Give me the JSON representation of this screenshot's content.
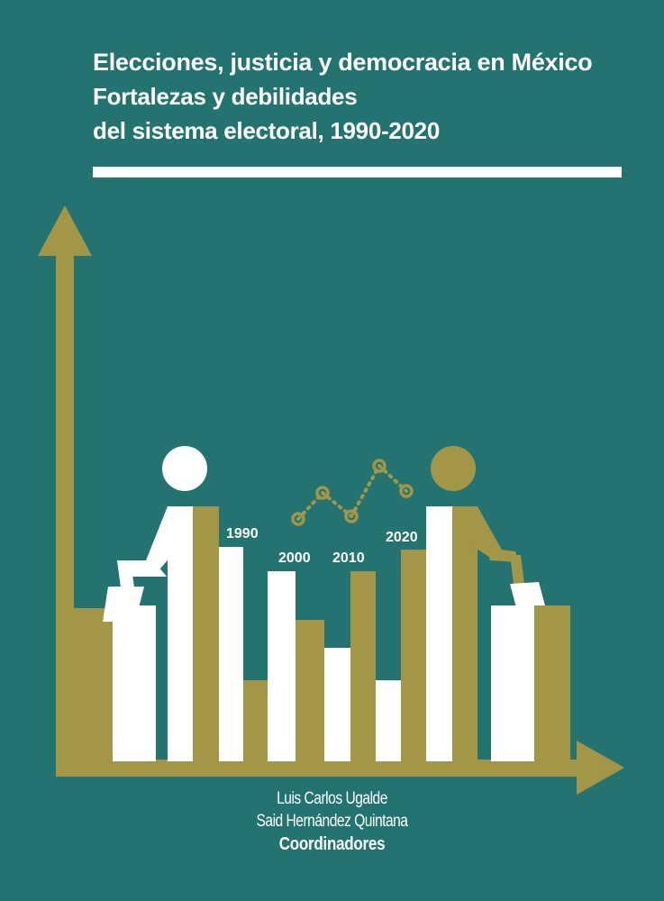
{
  "cover": {
    "title": "Elecciones, justicia y democracia en México",
    "subtitle_line1": "Fortalezas y debilidades",
    "subtitle_line2": "del sistema electoral, 1990-2020",
    "year_labels": [
      "1990",
      "2000",
      "2010",
      "2020"
    ],
    "authors": [
      "Luis Carlos Ugalde",
      "Said Hernández Quintana"
    ],
    "role": "Coordinadores"
  },
  "colors": {
    "background": "#237370",
    "gold": "#A39646",
    "white": "#FFFFFF"
  }
}
